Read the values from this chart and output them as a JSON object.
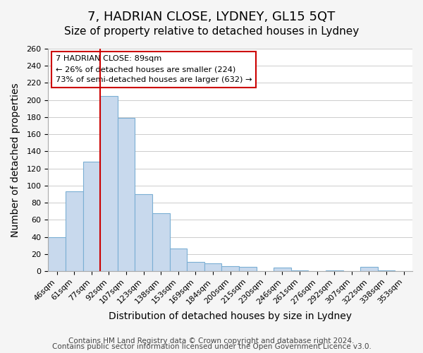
{
  "title": "7, HADRIAN CLOSE, LYDNEY, GL15 5QT",
  "subtitle": "Size of property relative to detached houses in Lydney",
  "xlabel": "Distribution of detached houses by size in Lydney",
  "ylabel": "Number of detached properties",
  "bar_labels": [
    "46sqm",
    "61sqm",
    "77sqm",
    "92sqm",
    "107sqm",
    "123sqm",
    "138sqm",
    "153sqm",
    "169sqm",
    "184sqm",
    "200sqm",
    "215sqm",
    "230sqm",
    "246sqm",
    "261sqm",
    "276sqm",
    "292sqm",
    "307sqm",
    "322sqm",
    "338sqm",
    "353sqm"
  ],
  "bar_values": [
    40,
    93,
    128,
    205,
    179,
    90,
    68,
    26,
    11,
    9,
    6,
    5,
    0,
    4,
    1,
    0,
    1,
    0,
    5,
    1,
    0
  ],
  "bar_color": "#c8d9ed",
  "bar_edge_color": "#7bafd4",
  "vline_x": 2.5,
  "vline_color": "#cc0000",
  "annotation_title": "7 HADRIAN CLOSE: 89sqm",
  "annotation_line1": "← 26% of detached houses are smaller (224)",
  "annotation_line2": "73% of semi-detached houses are larger (632) →",
  "annotation_box_color": "#ffffff",
  "annotation_border_color": "#cc0000",
  "ylim": [
    0,
    260
  ],
  "yticks": [
    0,
    20,
    40,
    60,
    80,
    100,
    120,
    140,
    160,
    180,
    200,
    220,
    240,
    260
  ],
  "footer1": "Contains HM Land Registry data © Crown copyright and database right 2024.",
  "footer2": "Contains public sector information licensed under the Open Government Licence v3.0.",
  "background_color": "#f5f5f5",
  "plot_background": "#ffffff",
  "grid_color": "#cccccc",
  "title_fontsize": 13,
  "subtitle_fontsize": 11,
  "axis_label_fontsize": 10,
  "tick_fontsize": 8,
  "footer_fontsize": 7.5
}
